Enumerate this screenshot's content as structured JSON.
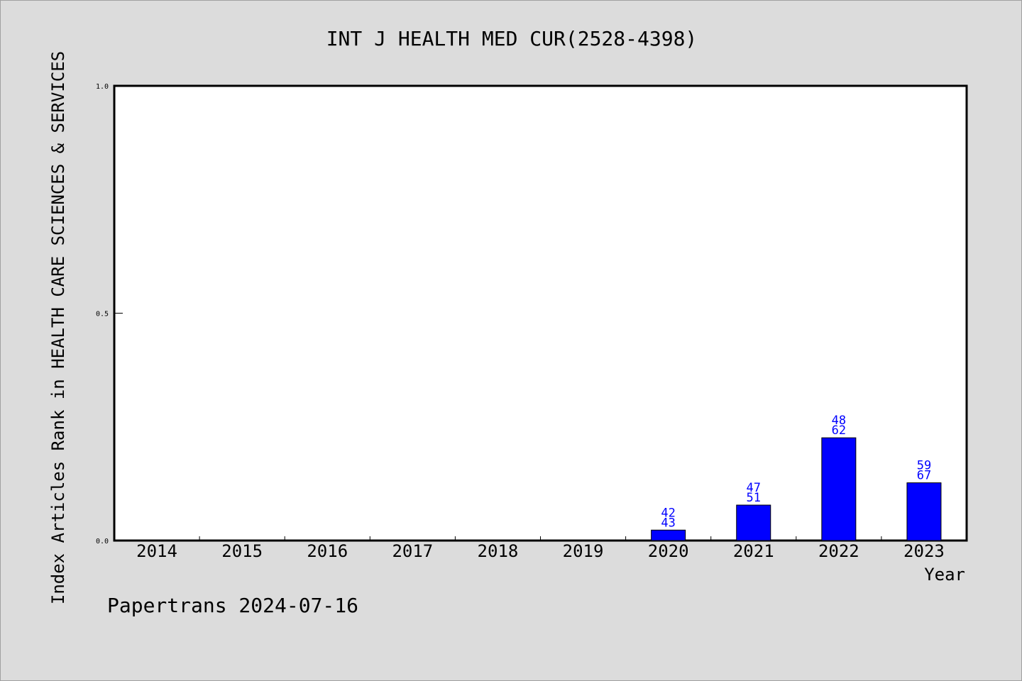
{
  "chart_data": {
    "type": "bar",
    "title": "INT J HEALTH MED CUR(2528-4398)",
    "xlabel": "Year",
    "ylabel": "Index Articles Rank in HEALTH CARE SCIENCES & SERVICES",
    "categories": [
      "2014",
      "2015",
      "2016",
      "2017",
      "2018",
      "2019",
      "2020",
      "2021",
      "2022",
      "2023"
    ],
    "values": [
      0,
      0,
      0,
      0,
      0,
      0,
      0.023,
      0.078,
      0.226,
      0.127
    ],
    "bar_labels": [
      null,
      null,
      null,
      null,
      null,
      null,
      [
        "42",
        "43"
      ],
      [
        "47",
        "51"
      ],
      [
        "48",
        "62"
      ],
      [
        "59",
        "67"
      ]
    ],
    "ylim": [
      0,
      1.0
    ],
    "yticks": [
      "0.0",
      "0.5",
      "1.0"
    ],
    "grid": false,
    "bar_color": "#0000ff"
  },
  "footer": "Papertrans 2024-07-16"
}
